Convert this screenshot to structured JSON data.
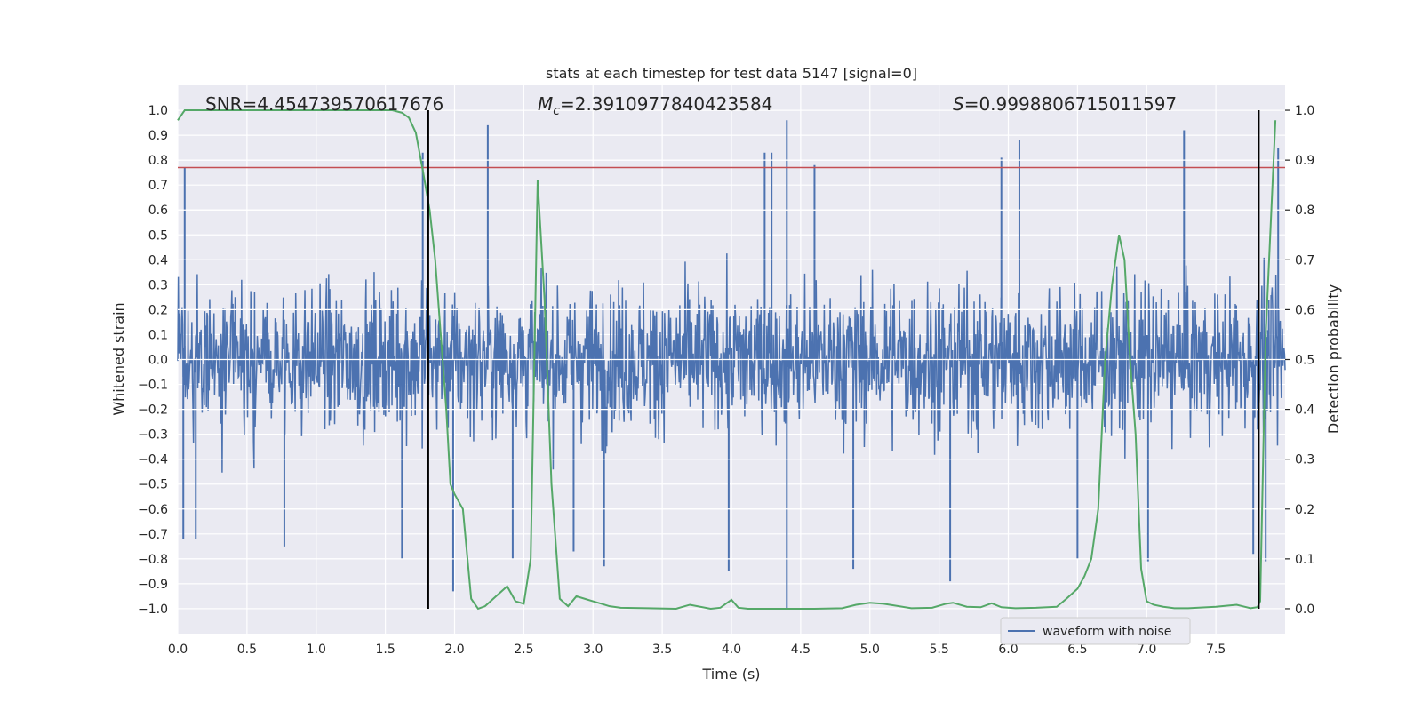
{
  "chart_data": {
    "type": "line",
    "title": "stats at each timestep for test data 5147 [signal=0]",
    "xlabel": "Time (s)",
    "ylabel": "Whitened strain",
    "ylabel_right": "Detection probability",
    "xlim": [
      0.0,
      8.0
    ],
    "ylim": [
      -1.1,
      1.1
    ],
    "ylim_right": [
      -0.05,
      1.05
    ],
    "x_ticks": [
      0.0,
      0.5,
      1.0,
      1.5,
      2.0,
      2.5,
      3.0,
      3.5,
      4.0,
      4.5,
      5.0,
      5.5,
      6.0,
      6.5,
      7.0,
      7.5
    ],
    "x_tick_labels": [
      "0.0",
      "0.5",
      "1.0",
      "1.5",
      "2.0",
      "2.5",
      "3.0",
      "3.5",
      "4.0",
      "4.5",
      "5.0",
      "5.5",
      "6.0",
      "6.5",
      "7.0",
      "7.5"
    ],
    "y_ticks": [
      1.0,
      0.9,
      0.8,
      0.7,
      0.6,
      0.5,
      0.4,
      0.3,
      0.2,
      0.1,
      0.0,
      -0.1,
      -0.2,
      -0.3,
      -0.4,
      -0.5,
      -0.6,
      -0.7,
      -0.8,
      -0.9,
      -1.0
    ],
    "y_tick_labels": [
      "1.0",
      "0.9",
      "0.8",
      "0.7",
      "0.6",
      "0.5",
      "0.4",
      "0.3",
      "0.2",
      "0.1",
      "0.0",
      "−0.1",
      "−0.2",
      "−0.3",
      "−0.4",
      "−0.5",
      "−0.6",
      "−0.7",
      "−0.8",
      "−0.9",
      "−1.0"
    ],
    "y_right_ticks": [
      1.0,
      0.9,
      0.8,
      0.7,
      0.6,
      0.5,
      0.4,
      0.3,
      0.2,
      0.1,
      0.0
    ],
    "y_right_tick_labels": [
      "1.0",
      "0.9",
      "0.8",
      "0.7",
      "0.6",
      "0.5",
      "0.4",
      "0.3",
      "0.2",
      "0.1",
      "0.0"
    ],
    "grid": true,
    "background": "#eaeaf2",
    "annotations": {
      "snr": "SNR=4.454739570617676",
      "mc_symbol": "M",
      "mc_sub": "c",
      "mc_value": "=2.3910977840423584",
      "s_symbol": "S",
      "s_value": "=0.9998806715011597"
    },
    "legend": {
      "location": "lower-right",
      "entries": [
        "waveform with noise"
      ]
    },
    "threshold_line": {
      "y": 0.77,
      "color": "#c44e52"
    },
    "vertical_lines": [
      1.81,
      7.81
    ],
    "waveform": {
      "name": "waveform with noise",
      "color": "#4c72b0",
      "samples": 2048,
      "envelope_typical": 0.35,
      "spikes": [
        {
          "x": 0.05,
          "y": 0.77
        },
        {
          "x": 0.04,
          "y": -0.72
        },
        {
          "x": 0.13,
          "y": -0.72
        },
        {
          "x": 0.77,
          "y": -0.75
        },
        {
          "x": 1.62,
          "y": -0.8
        },
        {
          "x": 1.77,
          "y": 0.83
        },
        {
          "x": 1.99,
          "y": -0.93
        },
        {
          "x": 2.24,
          "y": 0.94
        },
        {
          "x": 2.42,
          "y": -0.8
        },
        {
          "x": 2.86,
          "y": -0.77
        },
        {
          "x": 3.08,
          "y": -0.83
        },
        {
          "x": 3.98,
          "y": -0.85
        },
        {
          "x": 4.24,
          "y": 0.83
        },
        {
          "x": 4.29,
          "y": 0.83
        },
        {
          "x": 4.4,
          "y": 0.96
        },
        {
          "x": 4.4,
          "y": -1.0
        },
        {
          "x": 4.6,
          "y": 0.78
        },
        {
          "x": 4.88,
          "y": -0.84
        },
        {
          "x": 5.58,
          "y": -0.89
        },
        {
          "x": 5.95,
          "y": 0.81
        },
        {
          "x": 6.08,
          "y": 0.88
        },
        {
          "x": 6.5,
          "y": -0.8
        },
        {
          "x": 7.01,
          "y": -0.81
        },
        {
          "x": 7.27,
          "y": 0.92
        },
        {
          "x": 7.77,
          "y": -0.78
        },
        {
          "x": 7.86,
          "y": -0.81
        },
        {
          "x": 7.95,
          "y": 0.85
        }
      ]
    },
    "detection_probability": {
      "color": "#55a868",
      "x": [
        0.0,
        0.05,
        0.1,
        0.2,
        0.4,
        0.6,
        0.8,
        1.0,
        1.2,
        1.4,
        1.55,
        1.62,
        1.67,
        1.72,
        1.77,
        1.82,
        1.86,
        1.9,
        1.94,
        1.97,
        2.0,
        2.06,
        2.12,
        2.17,
        2.22,
        2.3,
        2.38,
        2.44,
        2.5,
        2.55,
        2.6,
        2.65,
        2.7,
        2.76,
        2.82,
        2.88,
        2.94,
        3.0,
        3.06,
        3.12,
        3.2,
        3.4,
        3.6,
        3.7,
        3.85,
        3.92,
        4.0,
        4.05,
        4.12,
        4.2,
        4.4,
        4.6,
        4.8,
        4.9,
        5.0,
        5.1,
        5.3,
        5.45,
        5.55,
        5.6,
        5.7,
        5.8,
        5.88,
        5.95,
        6.05,
        6.2,
        6.35,
        6.42,
        6.5,
        6.55,
        6.6,
        6.65,
        6.7,
        6.75,
        6.8,
        6.84,
        6.88,
        6.92,
        6.96,
        7.0,
        7.05,
        7.12,
        7.2,
        7.3,
        7.5,
        7.65,
        7.75,
        7.8,
        7.82,
        7.86,
        7.93
      ],
      "y": [
        0.98,
        1.0,
        1.0,
        1.0,
        1.0,
        1.0,
        1.0,
        1.0,
        1.0,
        1.0,
        1.0,
        0.995,
        0.985,
        0.955,
        0.88,
        0.8,
        0.7,
        0.55,
        0.4,
        0.25,
        0.23,
        0.2,
        0.02,
        0.0,
        0.005,
        0.025,
        0.045,
        0.015,
        0.01,
        0.1,
        0.86,
        0.62,
        0.25,
        0.02,
        0.005,
        0.025,
        0.02,
        0.015,
        0.01,
        0.005,
        0.002,
        0.001,
        0.0,
        0.008,
        0.0,
        0.002,
        0.018,
        0.002,
        0.0,
        0.0,
        0.0,
        0.0,
        0.001,
        0.008,
        0.012,
        0.01,
        0.001,
        0.002,
        0.01,
        0.012,
        0.004,
        0.003,
        0.011,
        0.003,
        0.001,
        0.002,
        0.004,
        0.02,
        0.04,
        0.065,
        0.1,
        0.2,
        0.5,
        0.65,
        0.75,
        0.7,
        0.5,
        0.35,
        0.08,
        0.015,
        0.008,
        0.004,
        0.001,
        0.001,
        0.004,
        0.008,
        0.001,
        0.003,
        0.015,
        0.55,
        0.98
      ]
    }
  }
}
